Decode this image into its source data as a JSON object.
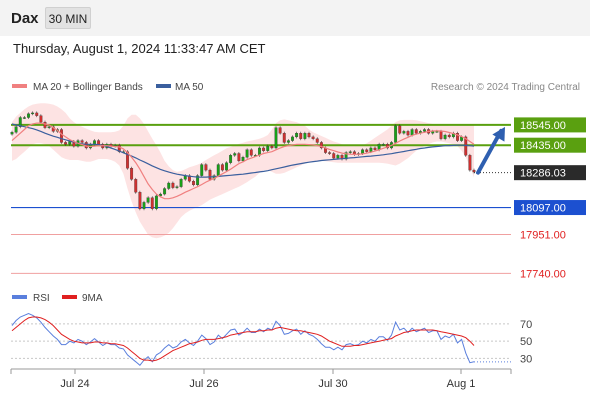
{
  "header": {
    "symbol": "Dax",
    "timeframe": "30 MIN",
    "timestamp": "Thursday, August 1, 2024 11:33:47 AM CET"
  },
  "legend": {
    "ma20": "MA 20 + Bollinger Bands",
    "ma50": "MA 50",
    "copyright": "Research © 2024 Trading Central"
  },
  "colors": {
    "ma20": "#f08080",
    "ma50": "#3a5f9e",
    "band": "#fde3e3",
    "up": "#18a018",
    "down": "#d03030",
    "support_line": "#1c50d0",
    "resistance_line": "#5aa010",
    "arrow": "#2e5fb0",
    "rsi": "#5a7fdd",
    "rsi_ma": "#e02020"
  },
  "chart_data": [
    {
      "type": "candlestick",
      "title": "Dax",
      "x_ticks": [
        "Jul 24",
        "Jul 26",
        "Jul 30",
        "Aug 1"
      ],
      "ylim": [
        17650,
        18680
      ],
      "close": [
        18505,
        18535,
        18585,
        18585,
        18605,
        18610,
        18595,
        18560,
        18530,
        18535,
        18510,
        18520,
        18450,
        18440,
        18455,
        18430,
        18460,
        18450,
        18420,
        18440,
        18460,
        18440,
        18420,
        18440,
        18430,
        18435,
        18400,
        18400,
        18310,
        18250,
        18180,
        18090,
        18125,
        18150,
        18090,
        18160,
        18170,
        18200,
        18230,
        18205,
        18210,
        18250,
        18270,
        18240,
        18220,
        18270,
        18330,
        18300,
        18250,
        18270,
        18330,
        18300,
        18340,
        18380,
        18390,
        18350,
        18370,
        18410,
        18380,
        18380,
        18420,
        18405,
        18430,
        18420,
        18530,
        18500,
        18450,
        18460,
        18480,
        18500,
        18470,
        18500,
        18480,
        18470,
        18450,
        18420,
        18395,
        18390,
        18365,
        18380,
        18360,
        18395,
        18400,
        18385,
        18390,
        18410,
        18400,
        18420,
        18410,
        18440,
        18440,
        18420,
        18450,
        18540,
        18500,
        18510,
        18490,
        18520,
        18500,
        18510,
        18520,
        18500,
        18510,
        18510,
        18470,
        18490,
        18480,
        18500,
        18460,
        18480,
        18380,
        18300,
        18290
      ],
      "ma20": [
        18460,
        18480,
        18500,
        18520,
        18540,
        18550,
        18555,
        18555,
        18550,
        18545,
        18530,
        18515,
        18495,
        18480,
        18465,
        18455,
        18445,
        18438,
        18430,
        18428,
        18430,
        18432,
        18432,
        18432,
        18430,
        18428,
        18425,
        18415,
        18395,
        18370,
        18340,
        18305,
        18265,
        18225,
        18195,
        18170,
        18155,
        18145,
        18145,
        18150,
        18158,
        18168,
        18180,
        18190,
        18200,
        18210,
        18222,
        18235,
        18245,
        18255,
        18267,
        18280,
        18292,
        18305,
        18320,
        18335,
        18345,
        18357,
        18365,
        18373,
        18382,
        18390,
        18395,
        18400,
        18410,
        18420,
        18428,
        18432,
        18436,
        18440,
        18440,
        18440,
        18438,
        18436,
        18432,
        18428,
        18420,
        18412,
        18405,
        18398,
        18392,
        18388,
        18386,
        18385,
        18386,
        18388,
        18392,
        18397,
        18403,
        18410,
        18418,
        18426,
        18434,
        18445,
        18458,
        18468,
        18478,
        18488,
        18495,
        18500,
        18505,
        18510,
        18512,
        18513,
        18512,
        18509,
        18504,
        18498,
        18491,
        18482,
        18470,
        18455,
        18440
      ],
      "bb_upper": [
        18560,
        18590,
        18610,
        18630,
        18645,
        18655,
        18660,
        18662,
        18662,
        18660,
        18655,
        18645,
        18630,
        18610,
        18580,
        18560,
        18545,
        18535,
        18525,
        18515,
        18508,
        18505,
        18505,
        18505,
        18505,
        18508,
        18515,
        18540,
        18580,
        18600,
        18600,
        18580,
        18550,
        18510,
        18470,
        18435,
        18395,
        18350,
        18320,
        18300,
        18290,
        18295,
        18305,
        18315,
        18322,
        18330,
        18340,
        18355,
        18368,
        18380,
        18392,
        18405,
        18418,
        18425,
        18435,
        18442,
        18448,
        18455,
        18460,
        18465,
        18470,
        18478,
        18490,
        18520,
        18555,
        18570,
        18575,
        18570,
        18565,
        18560,
        18550,
        18540,
        18520,
        18505,
        18495,
        18485,
        18475,
        18465,
        18455,
        18448,
        18440,
        18435,
        18430,
        18430,
        18432,
        18435,
        18445,
        18460,
        18475,
        18490,
        18505,
        18520,
        18540,
        18560,
        18570,
        18572,
        18572,
        18572,
        18570,
        18565,
        18560,
        18555,
        18550,
        18550,
        18548,
        18545,
        18540,
        18540,
        18542,
        18544,
        18546,
        18548,
        18548
      ],
      "bb_lower": [
        18350,
        18360,
        18380,
        18400,
        18420,
        18440,
        18445,
        18445,
        18440,
        18430,
        18410,
        18390,
        18370,
        18360,
        18355,
        18355,
        18355,
        18350,
        18345,
        18345,
        18352,
        18360,
        18360,
        18360,
        18355,
        18345,
        18325,
        18280,
        18200,
        18130,
        18070,
        18020,
        17985,
        17950,
        17935,
        17930,
        17935,
        17945,
        17960,
        17985,
        18015,
        18045,
        18065,
        18080,
        18090,
        18100,
        18110,
        18125,
        18140,
        18150,
        18160,
        18170,
        18180,
        18190,
        18200,
        18210,
        18222,
        18235,
        18250,
        18265,
        18285,
        18300,
        18300,
        18290,
        18280,
        18280,
        18285,
        18295,
        18305,
        18315,
        18325,
        18335,
        18345,
        18350,
        18350,
        18350,
        18348,
        18345,
        18342,
        18340,
        18340,
        18340,
        18340,
        18340,
        18340,
        18340,
        18340,
        18340,
        18340,
        18340,
        18338,
        18335,
        18330,
        18325,
        18335,
        18350,
        18365,
        18385,
        18405,
        18420,
        18430,
        18440,
        18450,
        18455,
        18455,
        18450,
        18445,
        18440,
        18430,
        18405,
        18370,
        18320,
        18260
      ],
      "ma50": [
        18550,
        18545,
        18540,
        18535,
        18530,
        18525,
        18518,
        18510,
        18500,
        18492,
        18484,
        18478,
        18470,
        18464,
        18458,
        18452,
        18446,
        18442,
        18440,
        18440,
        18440,
        18438,
        18434,
        18428,
        18420,
        18412,
        18403,
        18394,
        18385,
        18376,
        18366,
        18355,
        18345,
        18334,
        18323,
        18313,
        18304,
        18296,
        18289,
        18283,
        18278,
        18274,
        18270,
        18267,
        18264,
        18262,
        18262,
        18262,
        18263,
        18264,
        18266,
        18268,
        18270,
        18272,
        18274,
        18276,
        18278,
        18281,
        18284,
        18287,
        18290,
        18293,
        18297,
        18302,
        18307,
        18312,
        18317,
        18322,
        18327,
        18331,
        18335,
        18339,
        18343,
        18346,
        18349,
        18352,
        18354,
        18356,
        18358,
        18360,
        18362,
        18364,
        18366,
        18368,
        18370,
        18372,
        18374,
        18376,
        18378,
        18380,
        18383,
        18386,
        18389,
        18393,
        18397,
        18401,
        18405,
        18409,
        18413,
        18417,
        18420,
        18423,
        18426,
        18428,
        18430,
        18432,
        18433,
        18434,
        18435,
        18435,
        18434,
        18432,
        18430
      ],
      "levels": [
        {
          "value": 18545.0,
          "label": "18545.00",
          "kind": "resistance"
        },
        {
          "value": 18435.0,
          "label": "18435.00",
          "kind": "resistance"
        },
        {
          "value": 18286.03,
          "label": "18286.03",
          "kind": "last"
        },
        {
          "value": 18097.0,
          "label": "18097.00",
          "kind": "support"
        },
        {
          "value": 17951.0,
          "label": "17951.00",
          "kind": "target"
        },
        {
          "value": 17740.0,
          "label": "17740.00",
          "kind": "target"
        }
      ],
      "arrow": {
        "from_value": 18286,
        "to_value": 18545
      }
    },
    {
      "type": "line",
      "series": [
        {
          "name": "RSI",
          "values": [
            68,
            74,
            78,
            80,
            82,
            80,
            77,
            72,
            66,
            61,
            56,
            52,
            46,
            46,
            50,
            48,
            52,
            50,
            46,
            49,
            53,
            49,
            45,
            48,
            46,
            46,
            42,
            41,
            34,
            30,
            26,
            22,
            28,
            32,
            26,
            34,
            37,
            42,
            46,
            42,
            44,
            49,
            52,
            48,
            45,
            50,
            57,
            53,
            46,
            49,
            57,
            53,
            58,
            63,
            64,
            57,
            60,
            65,
            60,
            60,
            64,
            61,
            65,
            63,
            73,
            68,
            58,
            59,
            62,
            64,
            58,
            62,
            58,
            56,
            52,
            47,
            43,
            43,
            40,
            43,
            40,
            46,
            47,
            45,
            46,
            50,
            48,
            52,
            50,
            55,
            55,
            51,
            57,
            72,
            63,
            65,
            60,
            65,
            61,
            63,
            65,
            60,
            62,
            62,
            52,
            56,
            54,
            58,
            48,
            52,
            36,
            25,
            26
          ]
        },
        {
          "name": "9MA",
          "values": [
            62,
            66,
            70,
            74,
            77,
            78,
            78,
            77,
            75,
            72,
            68,
            63,
            58,
            55,
            52,
            50,
            49,
            48,
            48,
            48,
            49,
            49,
            48,
            48,
            47,
            47,
            46,
            45,
            42,
            38,
            34,
            30,
            28,
            28,
            27,
            28,
            30,
            33,
            36,
            39,
            41,
            43,
            45,
            47,
            48,
            49,
            51,
            52,
            52,
            52,
            53,
            54,
            55,
            57,
            58,
            59,
            60,
            61,
            61,
            61,
            62,
            62,
            63,
            63,
            65,
            66,
            65,
            64,
            63,
            62,
            62,
            61,
            60,
            59,
            58,
            56,
            53,
            50,
            48,
            46,
            44,
            44,
            44,
            45,
            45,
            46,
            47,
            48,
            49,
            50,
            51,
            52,
            53,
            56,
            58,
            60,
            61,
            62,
            63,
            63,
            63,
            63,
            63,
            62,
            61,
            60,
            59,
            58,
            57,
            56,
            54,
            50,
            45
          ]
        }
      ],
      "y_ticks": [
        "70",
        "50",
        "30"
      ],
      "ylim": [
        20,
        85
      ]
    }
  ]
}
